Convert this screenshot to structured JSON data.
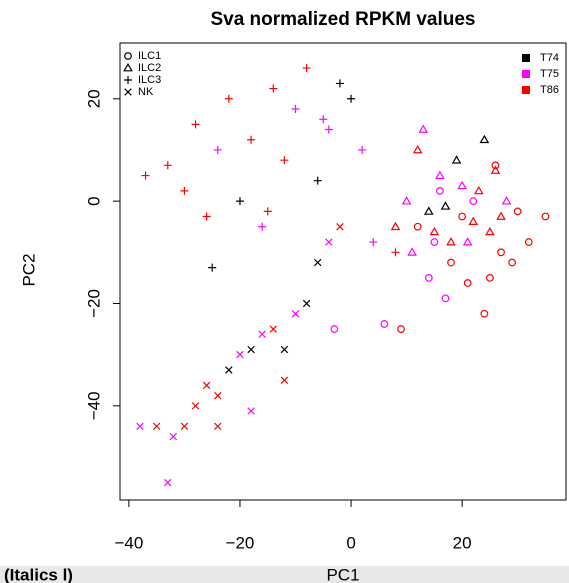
{
  "chart_data": {
    "type": "scatter",
    "title": "Sva normalized RPKM values",
    "xlabel": "PC1",
    "ylabel": "PC2",
    "xlim": [
      -41.6,
      38.7
    ],
    "ylim": [
      -58.4,
      30.9
    ],
    "xticks": [
      {
        "value": -40,
        "label": "−40"
      },
      {
        "value": -20,
        "label": "−20"
      },
      0,
      20
    ],
    "yticks": [
      {
        "value": -40,
        "label": "−40"
      },
      {
        "value": -20,
        "label": "−20"
      },
      0,
      20
    ],
    "groups": [
      {
        "name": "T74",
        "color": "#000000"
      },
      {
        "name": "T75",
        "color": "#ff00ff"
      },
      {
        "name": "T86",
        "color": "#ff0000"
      }
    ],
    "series": [
      {
        "name": "ILC1",
        "marker": "circle",
        "x": [
          12,
          15,
          18,
          20,
          22,
          25,
          27,
          30,
          32,
          35,
          14,
          17,
          21,
          24,
          29,
          16,
          26,
          6,
          9,
          -3
        ],
        "values": [
          -5,
          -8,
          -12,
          -3,
          0,
          -15,
          -10,
          -2,
          -8,
          -3,
          -15,
          -19,
          -16,
          -22,
          -12,
          2,
          7,
          -24,
          -25,
          -25
        ],
        "group": [
          2,
          1,
          2,
          2,
          1,
          2,
          2,
          2,
          2,
          2,
          1,
          1,
          2,
          2,
          2,
          1,
          2,
          1,
          2,
          1
        ]
      },
      {
        "name": "ILC2",
        "marker": "triangle",
        "x": [
          8,
          10,
          12,
          14,
          16,
          18,
          20,
          22,
          24,
          26,
          28,
          11,
          15,
          19,
          23,
          27,
          13,
          21,
          25,
          17
        ],
        "values": [
          -5,
          0,
          10,
          -2,
          5,
          -8,
          3,
          -4,
          12,
          6,
          0,
          -10,
          -6,
          8,
          2,
          -3,
          14,
          -8,
          -6,
          -1
        ],
        "group": [
          2,
          1,
          2,
          0,
          1,
          2,
          1,
          2,
          0,
          2,
          1,
          1,
          2,
          0,
          2,
          2,
          1,
          1,
          2,
          0
        ]
      },
      {
        "name": "ILC3",
        "marker": "plus",
        "x": [
          -37,
          -33,
          -30,
          -28,
          -26,
          -24,
          -22,
          -20,
          -18,
          -16,
          -14,
          -12,
          -10,
          -8,
          -6,
          -4,
          -2,
          0,
          2,
          4,
          -25,
          -15,
          -5,
          8
        ],
        "values": [
          5,
          7,
          2,
          15,
          -3,
          10,
          20,
          0,
          12,
          -5,
          22,
          8,
          18,
          26,
          4,
          14,
          23,
          20,
          10,
          -8,
          -13,
          -2,
          16,
          -10
        ],
        "group": [
          2,
          2,
          2,
          2,
          2,
          1,
          2,
          0,
          2,
          1,
          2,
          2,
          1,
          2,
          0,
          1,
          0,
          0,
          1,
          1,
          0,
          2,
          1,
          2
        ]
      },
      {
        "name": "NK",
        "marker": "cross",
        "x": [
          -38,
          -35,
          -32,
          -30,
          -28,
          -26,
          -24,
          -22,
          -20,
          -18,
          -16,
          -14,
          -12,
          -10,
          -8,
          -6,
          -4,
          -2,
          -33,
          -18,
          -12,
          -24
        ],
        "values": [
          -44,
          -44,
          -46,
          -44,
          -40,
          -36,
          -38,
          -33,
          -30,
          -29,
          -26,
          -25,
          -29,
          -22,
          -20,
          -12,
          -8,
          -5,
          -55,
          -41,
          -35,
          -44
        ],
        "group": [
          1,
          2,
          1,
          2,
          2,
          2,
          2,
          0,
          1,
          0,
          1,
          2,
          0,
          1,
          0,
          0,
          1,
          2,
          1,
          1,
          2,
          2
        ]
      }
    ],
    "footer": "(Italics l)"
  }
}
